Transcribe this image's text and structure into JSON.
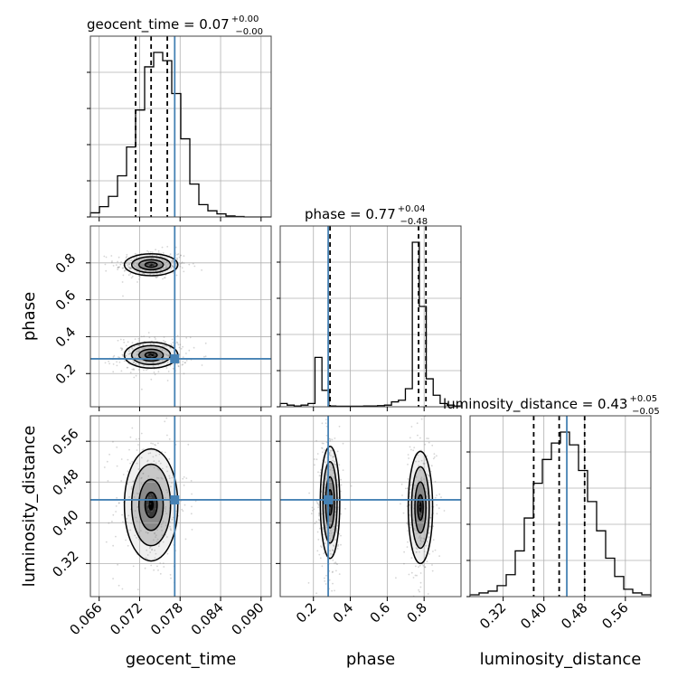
{
  "colors": {
    "truth": "#4682b4",
    "hist": "#000000",
    "grid": "#b0b0b0",
    "scatter": "#888888"
  },
  "chart_data": {
    "type": "corner",
    "parameters": [
      "geocent_time",
      "phase",
      "luminosity_distance"
    ],
    "truths": {
      "geocent_time": 0.0772,
      "phase": 0.28,
      "luminosity_distance": 0.445
    },
    "titles": {
      "geocent_time": {
        "label": "geocent_time = 0.07",
        "upper": "+0.00",
        "lower": "−0.00"
      },
      "phase": {
        "label": "phase = 0.77",
        "upper": "+0.04",
        "lower": "−0.48"
      },
      "luminosity_distance": {
        "label": "luminosity_distance = 0.43",
        "upper": "+0.05",
        "lower": "−0.05"
      }
    },
    "axis_labels": {
      "geocent_time": "geocent_time",
      "phase": "phase",
      "luminosity_distance": "luminosity_distance"
    },
    "ranges": {
      "geocent_time": [
        0.0647,
        0.0915
      ],
      "phase": [
        0.02,
        1.0
      ],
      "luminosity_distance": [
        0.255,
        0.61
      ]
    },
    "ticks": {
      "geocent_time": [
        "0.066",
        "0.072",
        "0.078",
        "0.084",
        "0.090"
      ],
      "phase_x": [
        "0.2",
        "0.4",
        "0.6",
        "0.8"
      ],
      "phase_y": [
        "0.2",
        "0.4",
        "0.6",
        "0.8"
      ],
      "luminosity_distance_x": [
        "0.32",
        "0.40",
        "0.48",
        "0.56"
      ],
      "luminosity_distance_y": [
        "0.32",
        "0.40",
        "0.48",
        "0.56"
      ]
    },
    "quantiles": {
      "geocent_time": [
        0.0714,
        0.0737,
        0.0761
      ],
      "phase": [
        0.29,
        0.77,
        0.81
      ],
      "luminosity_distance": [
        0.38,
        0.43,
        0.48
      ]
    },
    "histograms": {
      "geocent_time": {
        "range": [
          0.0647,
          0.0915
        ],
        "counts": [
          2,
          5,
          10,
          20,
          34,
          52,
          73,
          80,
          76,
          60,
          38,
          16,
          6,
          3,
          1.5,
          0.5,
          0.2,
          0,
          0,
          0
        ]
      },
      "phase": {
        "range": [
          0.02,
          1.0
        ],
        "counts": [
          2,
          1,
          0.5,
          1,
          2,
          30,
          10,
          0.5,
          0.3,
          0.3,
          0.3,
          0.3,
          0.5,
          0.5,
          0.7,
          1,
          3,
          4,
          11,
          100,
          61,
          17,
          7,
          2,
          1,
          0.5
        ]
      },
      "luminosity_distance": {
        "range": [
          0.255,
          0.61
        ],
        "counts": [
          1,
          2,
          3,
          6,
          12,
          25,
          43,
          62,
          75,
          84,
          90,
          83,
          69,
          52,
          36,
          21,
          11,
          4,
          2,
          1
        ]
      }
    },
    "blobs": [
      {
        "x": "geocent_time",
        "y": "phase",
        "cx": 0.0737,
        "cy": 0.79,
        "sx": 0.0018,
        "sy": 0.027
      },
      {
        "x": "geocent_time",
        "y": "phase",
        "cx": 0.0737,
        "cy": 0.3,
        "sx": 0.0018,
        "sy": 0.032
      },
      {
        "x": "geocent_time",
        "y": "luminosity_distance",
        "cx": 0.0737,
        "cy": 0.435,
        "sx": 0.0018,
        "sy": 0.05
      },
      {
        "x": "phase",
        "y": "luminosity_distance",
        "cx": 0.29,
        "cy": 0.44,
        "sx": 0.024,
        "sy": 0.05
      },
      {
        "x": "phase",
        "y": "luminosity_distance",
        "cx": 0.78,
        "cy": 0.43,
        "sx": 0.03,
        "sy": 0.05
      }
    ]
  }
}
